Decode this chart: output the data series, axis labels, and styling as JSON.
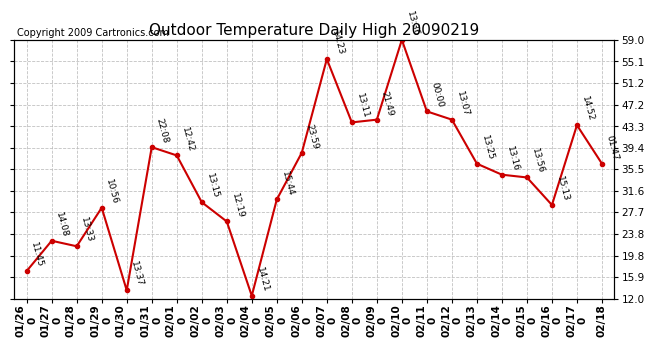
{
  "title": "Outdoor Temperature Daily High 20090219",
  "copyright": "Copyright 2009 Cartronics.com",
  "dates": [
    "01/26",
    "01/27",
    "01/28",
    "01/29",
    "01/30",
    "01/31",
    "02/01",
    "02/02",
    "02/03",
    "02/04",
    "02/05",
    "02/06",
    "02/07",
    "02/08",
    "02/09",
    "02/10",
    "02/11",
    "02/12",
    "02/13",
    "02/14",
    "02/15",
    "02/16",
    "02/17",
    "02/18"
  ],
  "xtick_labels": [
    "01/26\n0",
    "01/27\n0",
    "01/28\n0",
    "01/29\n0",
    "01/30\n0",
    "01/31\n0",
    "02/01\n0",
    "02/02\n0",
    "02/03\n0",
    "02/04\n0",
    "02/05\n0",
    "02/06\n0",
    "02/07\n0",
    "02/08\n0",
    "02/09\n0",
    "02/10\n0",
    "02/11\n0",
    "02/12\n0",
    "02/13\n0",
    "02/14\n0",
    "02/15\n0",
    "02/16\n0",
    "02/17\n0",
    "02/18"
  ],
  "values": [
    17.0,
    22.5,
    21.5,
    28.5,
    13.5,
    39.5,
    38.0,
    29.5,
    26.0,
    12.5,
    30.0,
    38.5,
    55.5,
    44.0,
    44.5,
    59.0,
    46.0,
    44.5,
    36.5,
    34.5,
    34.0,
    29.0,
    43.5,
    36.5
  ],
  "labels": [
    "11:45",
    "14:08",
    "13:33",
    "10:56",
    "13:37",
    "22:08",
    "12:42",
    "13:15",
    "12:19",
    "14:21",
    "15:44",
    "23:59",
    "14:23",
    "13:11",
    "21:49",
    "13:36",
    "00:00",
    "13:07",
    "13:25",
    "13:16",
    "13:56",
    "15:13",
    "14:52",
    "01:47"
  ],
  "line_color": "#cc0000",
  "marker_color": "#cc0000",
  "background_color": "#ffffff",
  "grid_color": "#bbbbbb",
  "ylim": [
    12.0,
    59.0
  ],
  "yticks": [
    12.0,
    15.9,
    19.8,
    23.8,
    27.7,
    31.6,
    35.5,
    39.4,
    43.3,
    47.2,
    51.2,
    55.1,
    59.0
  ],
  "title_fontsize": 11,
  "label_fontsize": 6.5,
  "tick_fontsize": 7.5,
  "copyright_fontsize": 7
}
